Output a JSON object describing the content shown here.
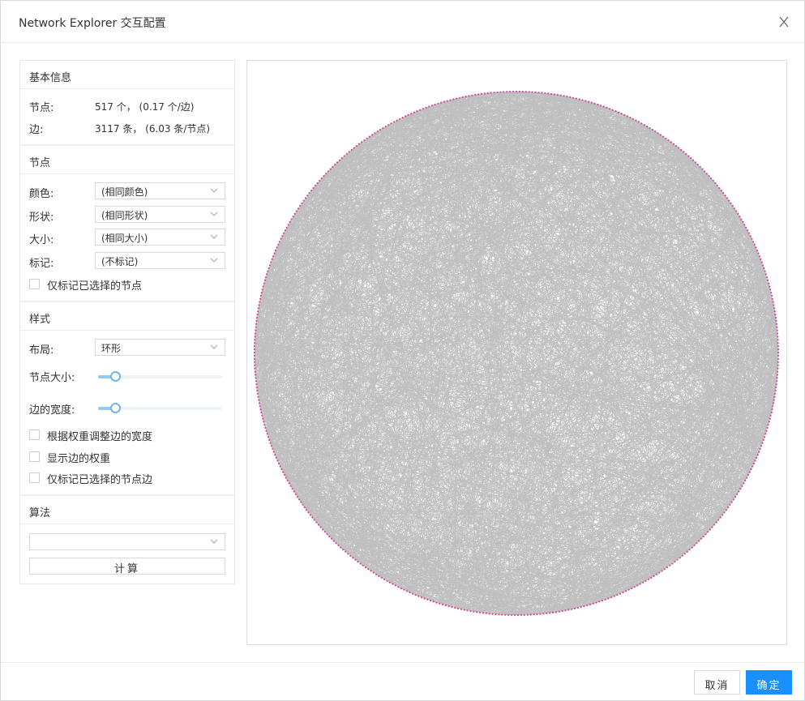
{
  "dialog": {
    "title": "Network Explorer 交互配置",
    "close_label": "X"
  },
  "basic_info": {
    "heading": "基本信息",
    "nodes_label": "节点:",
    "nodes_value": "517 个， (0.17 个/边)",
    "edges_label": "边:",
    "edges_value": "3117 条， (6.03 条/节点)"
  },
  "node_section": {
    "heading": "节点",
    "color_label": "颜色:",
    "color_value": "(相同颜色)",
    "shape_label": "形状:",
    "shape_value": "(相同形状)",
    "size_label": "大小:",
    "size_value": "(相同大小)",
    "mark_label": "标记:",
    "mark_value": "(不标记)",
    "only_mark_selected_label": "仅标记已选择的节点",
    "only_mark_selected_checked": false
  },
  "style_section": {
    "heading": "样式",
    "layout_label": "布局:",
    "layout_value": "环形",
    "node_size_label": "节点大小:",
    "node_size_level": 0.11,
    "edge_width_label": "边的宽度:",
    "edge_width_level": 0.11,
    "adjust_width_by_weight_label": "根据权重调整边的宽度",
    "adjust_width_by_weight_checked": false,
    "show_edge_weight_label": "显示边的权重",
    "show_edge_weight_checked": false,
    "only_mark_selected_edges_label": "仅标记已选择的节点边",
    "only_mark_selected_edges_checked": false
  },
  "algorithm_section": {
    "heading": "算法",
    "algorithm_value": "",
    "compute_label": "计算"
  },
  "graph": {
    "layout": "circular",
    "node_count": 517,
    "edge_count": 3117,
    "node_color": "#d44a9a",
    "edge_color": "#8a8a8a"
  },
  "footer": {
    "cancel_label": "取消",
    "ok_label": "确定"
  },
  "colors": {
    "primary": "#1890ff",
    "slider": "#70b5ec"
  }
}
